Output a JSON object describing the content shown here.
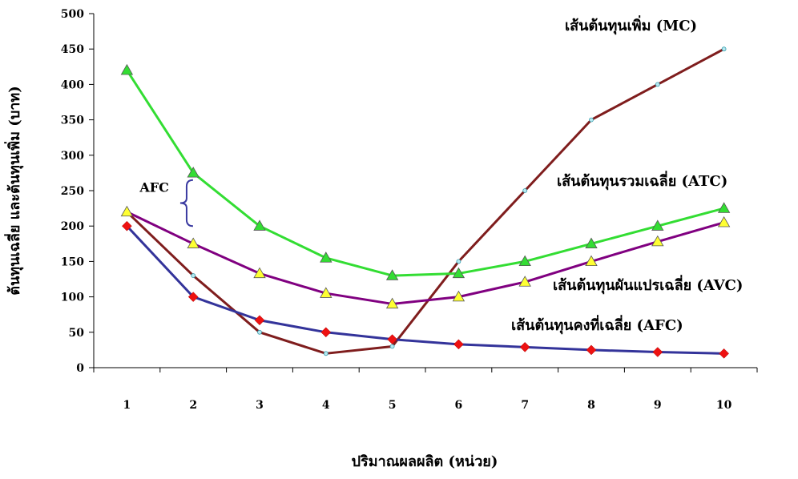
{
  "chart_data": {
    "type": "line",
    "xlabel": "ปริมาณผลผลิต (หน่วย)",
    "ylabel": "ต้นทุนเฉลี่ย และต้นทุนเพิ่ม (บาท)",
    "x": [
      1,
      2,
      3,
      4,
      5,
      6,
      7,
      8,
      9,
      10
    ],
    "ylim": [
      0,
      500
    ],
    "yticks": [
      0,
      50,
      100,
      150,
      200,
      250,
      300,
      350,
      400,
      450,
      500
    ],
    "grid": false,
    "series": [
      {
        "name": "เส้นต้นทุนเพิ่ม (MC)",
        "key": "mc",
        "color": "#7f1d1d",
        "marker": "circle-small",
        "marker_color": "#b8e8f0",
        "values": [
          220,
          130,
          50,
          20,
          30,
          150,
          250,
          350,
          400,
          450
        ]
      },
      {
        "name": "เส้นต้นทุนรวมเฉลี่ย (ATC)",
        "key": "atc",
        "color": "#33dd33",
        "marker": "triangle",
        "marker_color": "#33dd33",
        "values": [
          420,
          275,
          200,
          155,
          130,
          133,
          150,
          175,
          200,
          225
        ]
      },
      {
        "name": "เส้นต้นทุนผันแปรเฉลี่ย (AVC)",
        "key": "avc",
        "color": "#800080",
        "marker": "triangle",
        "marker_color": "#ffff33",
        "values": [
          220,
          175,
          133,
          105,
          90,
          100,
          121,
          150,
          178,
          205
        ]
      },
      {
        "name": "เส้นต้นทุนคงที่เฉลี่ย (AFC)",
        "key": "afc",
        "color": "#33339a",
        "marker": "diamond",
        "marker_color": "#ee1111",
        "values": [
          200,
          100,
          67,
          50,
          40,
          33,
          29,
          25,
          22,
          20
        ]
      }
    ],
    "annotations": [
      {
        "text": "AFC",
        "type": "brace",
        "at_x": 1.9,
        "y_from": 200,
        "y_to": 265
      }
    ]
  }
}
